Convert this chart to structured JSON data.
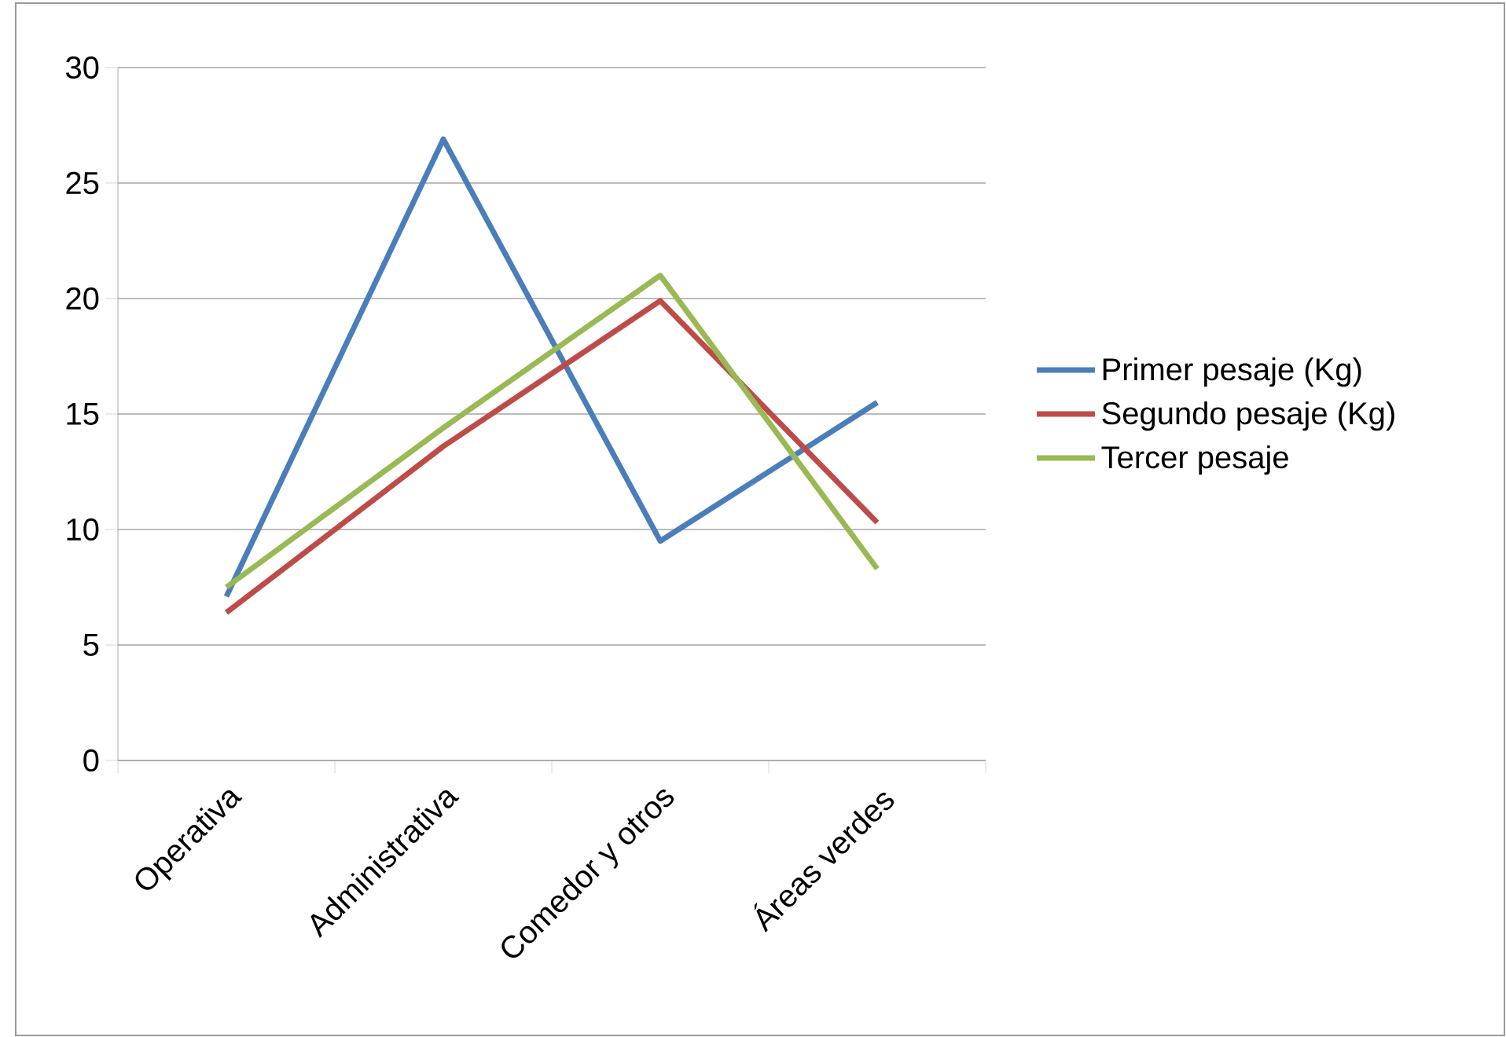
{
  "chart_data": {
    "type": "line",
    "categories": [
      "Operativa",
      "Administrativa",
      "Comedor y otros",
      "Áreas verdes"
    ],
    "series": [
      {
        "name": "Primer pesaje (Kg)",
        "color": "#4a7ebb",
        "values": [
          7.1,
          26.9,
          9.5,
          15.5
        ]
      },
      {
        "name": "Segundo pesaje (Kg)",
        "color": "#be4b48",
        "values": [
          6.4,
          13.6,
          19.9,
          10.3
        ]
      },
      {
        "name": "Tercer pesaje",
        "color": "#98b954",
        "values": [
          7.5,
          14.4,
          21.0,
          8.3
        ]
      }
    ],
    "ylim": [
      0,
      30
    ],
    "yticks": [
      0,
      5,
      10,
      15,
      20,
      25,
      30
    ],
    "grid": "y",
    "legend": "right",
    "marker": "none",
    "line_style": "solid"
  }
}
